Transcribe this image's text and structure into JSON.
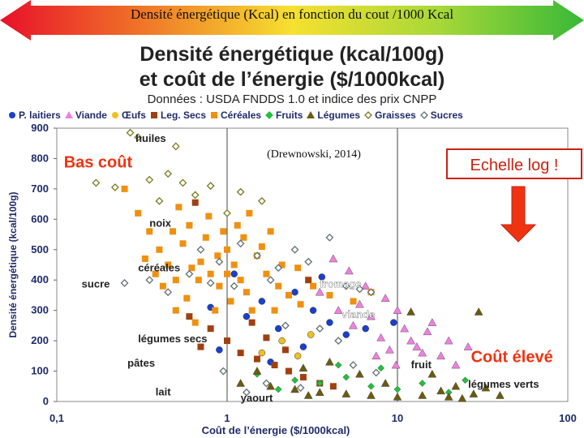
{
  "banner_title": "Densité énergétique (Kcal) en fonction du cout /1000 Kcal",
  "chart_data": {
    "type": "scatter",
    "title_line1": "Densité énergétique (kcal/100g)",
    "title_line2": "et coût de l’énergie ($/1000kcal)",
    "subtitle": "Données : USDA FNDDS 1.0 et indice des prix CNPP",
    "xlabel": "Coût de l’énergie ($/1000kcal)",
    "ylabel": "Densité énergétique (kcal/100g)",
    "x_scale": "log",
    "xlim": [
      0.1,
      100
    ],
    "ylim": [
      0,
      900
    ],
    "x_ticks": [
      {
        "v": 0.1,
        "label": "0,1"
      },
      {
        "v": 1,
        "label": "1"
      },
      {
        "v": 10,
        "label": "10"
      },
      {
        "v": 100,
        "label": "100"
      }
    ],
    "y_ticks": [
      0,
      100,
      200,
      300,
      400,
      500,
      600,
      700,
      800,
      900
    ],
    "series": [
      {
        "name": "P. laitiers",
        "color": "#1a3fd0",
        "marker": "circle",
        "points": [
          [
            0.8,
            310
          ],
          [
            1.3,
            280
          ],
          [
            1.6,
            330
          ],
          [
            2.0,
            240
          ],
          [
            2.5,
            360
          ],
          [
            3.2,
            300
          ],
          [
            4.0,
            260
          ],
          [
            5.0,
            220
          ],
          [
            0.9,
            170
          ],
          [
            1.8,
            130
          ],
          [
            6.5,
            240
          ],
          [
            2.8,
            180
          ],
          [
            9.5,
            260
          ],
          [
            1.1,
            420
          ],
          [
            3.6,
            410
          ]
        ]
      },
      {
        "name": "Viande",
        "color": "#f080e0",
        "marker": "triangle",
        "points": [
          [
            3.5,
            360
          ],
          [
            4.5,
            300
          ],
          [
            5.5,
            250
          ],
          [
            6.0,
            320
          ],
          [
            7.0,
            280
          ],
          [
            8.0,
            210
          ],
          [
            9.0,
            170
          ],
          [
            11,
            240
          ],
          [
            13,
            180
          ],
          [
            15,
            230
          ],
          [
            18,
            150
          ],
          [
            22,
            120
          ],
          [
            6.5,
            380
          ],
          [
            8.5,
            340
          ],
          [
            10,
            300
          ],
          [
            12,
            200
          ],
          [
            16,
            260
          ],
          [
            4.2,
            470
          ],
          [
            5.2,
            430
          ],
          [
            7.5,
            150
          ],
          [
            9.8,
            120
          ],
          [
            14,
            160
          ],
          [
            20,
            200
          ],
          [
            26,
            180
          ]
        ]
      },
      {
        "name": "Œufs",
        "color": "#f0c020",
        "marker": "circle",
        "points": [
          [
            1.6,
            160
          ],
          [
            2.1,
            200
          ],
          [
            2.6,
            150
          ],
          [
            3.1,
            220
          ]
        ]
      },
      {
        "name": "Leg. Secs",
        "color": "#a04010",
        "marker": "square",
        "points": [
          [
            0.6,
            280
          ],
          [
            0.8,
            240
          ],
          [
            1.0,
            200
          ],
          [
            1.2,
            160
          ],
          [
            1.5,
            140
          ],
          [
            1.9,
            120
          ],
          [
            2.3,
            100
          ],
          [
            0.7,
            180
          ],
          [
            1.4,
            260
          ],
          [
            2.8,
            80
          ],
          [
            3.5,
            60
          ],
          [
            4.2,
            50
          ],
          [
            1.7,
            210
          ],
          [
            2.2,
            170
          ],
          [
            0.65,
            655
          ],
          [
            3.0,
            400
          ]
        ]
      },
      {
        "name": "Céréales",
        "color": "#f09010",
        "marker": "square",
        "points": [
          [
            0.25,
            700
          ],
          [
            0.3,
            620
          ],
          [
            0.35,
            560
          ],
          [
            0.4,
            500
          ],
          [
            0.45,
            450
          ],
          [
            0.5,
            400
          ],
          [
            0.55,
            520
          ],
          [
            0.6,
            580
          ],
          [
            0.7,
            460
          ],
          [
            0.8,
            420
          ],
          [
            0.9,
            380
          ],
          [
            1.0,
            500
          ],
          [
            1.1,
            450
          ],
          [
            1.2,
            400
          ],
          [
            1.3,
            360
          ],
          [
            1.5,
            480
          ],
          [
            1.7,
            420
          ],
          [
            2.0,
            380
          ],
          [
            2.3,
            350
          ],
          [
            2.7,
            320
          ],
          [
            0.42,
            380
          ],
          [
            0.58,
            340
          ],
          [
            0.75,
            540
          ],
          [
            0.95,
            560
          ],
          [
            1.25,
            540
          ],
          [
            1.6,
            510
          ],
          [
            2.1,
            450
          ],
          [
            2.6,
            440
          ],
          [
            3.2,
            380
          ],
          [
            0.5,
            300
          ],
          [
            0.65,
            260
          ],
          [
            0.85,
            300
          ],
          [
            1.05,
            330
          ],
          [
            1.4,
            300
          ],
          [
            1.9,
            300
          ],
          [
            0.33,
            470
          ],
          [
            0.48,
            560
          ],
          [
            0.68,
            400
          ],
          [
            0.88,
            480
          ],
          [
            1.15,
            580
          ],
          [
            0.52,
            640
          ],
          [
            0.78,
            610
          ],
          [
            1.35,
            620
          ],
          [
            1.8,
            560
          ],
          [
            4.0,
            350
          ],
          [
            5.5,
            330
          ],
          [
            7.0,
            360
          ],
          [
            0.38,
            420
          ],
          [
            0.62,
            440
          ],
          [
            1.0,
            420
          ]
        ]
      },
      {
        "name": "Fruits",
        "color": "#20c040",
        "marker": "diamond",
        "points": [
          [
            1.5,
            90
          ],
          [
            2.5,
            70
          ],
          [
            3.5,
            60
          ],
          [
            5.0,
            80
          ],
          [
            7.0,
            50
          ],
          [
            10,
            40
          ],
          [
            14,
            60
          ],
          [
            20,
            30
          ],
          [
            2.0,
            40
          ],
          [
            4.5,
            120
          ],
          [
            8.0,
            110
          ],
          [
            25,
            70
          ]
        ]
      },
      {
        "name": "Légumes",
        "color": "#6b5a10",
        "marker": "triangle",
        "points": [
          [
            1.2,
            60
          ],
          [
            1.8,
            50
          ],
          [
            2.5,
            40
          ],
          [
            3.5,
            30
          ],
          [
            5.0,
            25
          ],
          [
            7.0,
            20
          ],
          [
            10,
            15
          ],
          [
            14,
            20
          ],
          [
            20,
            15
          ],
          [
            28,
            25
          ],
          [
            12,
            295
          ],
          [
            30,
            295
          ],
          [
            16,
            90
          ],
          [
            22,
            50
          ],
          [
            8.5,
            60
          ],
          [
            6.0,
            90
          ],
          [
            4.0,
            130
          ],
          [
            2.8,
            110
          ],
          [
            1.5,
            100
          ],
          [
            3.0,
            20
          ],
          [
            40,
            20
          ],
          [
            33,
            45
          ],
          [
            18,
            35
          ],
          [
            24,
            10
          ]
        ]
      },
      {
        "name": "Graisses",
        "color": "#7a7a20",
        "marker": "diamond",
        "points": [
          [
            0.17,
            720
          ],
          [
            0.22,
            705
          ],
          [
            0.27,
            885
          ],
          [
            0.35,
            730
          ],
          [
            0.45,
            750
          ],
          [
            0.55,
            720
          ],
          [
            0.65,
            680
          ],
          [
            0.3,
            870
          ],
          [
            0.8,
            710
          ],
          [
            1.2,
            690
          ],
          [
            1.6,
            660
          ],
          [
            1.0,
            620
          ],
          [
            0.5,
            840
          ],
          [
            0.4,
            660
          ]
        ]
      },
      {
        "name": "Sucres",
        "color": "#607070",
        "marker": "diamond",
        "points": [
          [
            0.25,
            390
          ],
          [
            0.35,
            400
          ],
          [
            0.45,
            360
          ],
          [
            0.6,
            420
          ],
          [
            0.7,
            500
          ],
          [
            0.9,
            460
          ],
          [
            1.2,
            520
          ],
          [
            1.5,
            480
          ],
          [
            2.0,
            440
          ],
          [
            2.5,
            500
          ],
          [
            3.0,
            460
          ],
          [
            4.0,
            540
          ],
          [
            5.0,
            380
          ],
          [
            6.0,
            370
          ],
          [
            7.0,
            360
          ],
          [
            1.1,
            380
          ],
          [
            1.8,
            400
          ],
          [
            0.8,
            390
          ],
          [
            2.2,
            250
          ],
          [
            3.5,
            240
          ],
          [
            4.5,
            200
          ],
          [
            1.7,
            60
          ],
          [
            2.7,
            45
          ],
          [
            0.95,
            100
          ],
          [
            1.3,
            30
          ],
          [
            5.5,
            120
          ],
          [
            7.5,
            95
          ]
        ]
      }
    ],
    "annotations": [
      {
        "text": "huiles",
        "x": 0.29,
        "y": 855,
        "color": "#222222",
        "size": 13
      },
      {
        "text": "noix",
        "x": 0.35,
        "y": 575,
        "color": "#222222",
        "size": 13
      },
      {
        "text": "céréales",
        "x": 0.3,
        "y": 428,
        "color": "#222222",
        "size": 13
      },
      {
        "text": "sucre",
        "x": 0.14,
        "y": 375,
        "color": "#222222",
        "size": 13
      },
      {
        "text": "légumes secs",
        "x": 0.3,
        "y": 195,
        "color": "#222222",
        "size": 13
      },
      {
        "text": "pâtes",
        "x": 0.26,
        "y": 115,
        "color": "#222222",
        "size": 13
      },
      {
        "text": "lait",
        "x": 0.38,
        "y": 20,
        "color": "#222222",
        "size": 13
      },
      {
        "text": "yaourt",
        "x": 1.2,
        "y": 0,
        "color": "#222222",
        "size": 13
      },
      {
        "text": "fromage",
        "x": 3.5,
        "y": 375,
        "color": "#ffffff",
        "size": 13
      },
      {
        "text": "viande",
        "x": 4.7,
        "y": 275,
        "color": "#ffffff",
        "size": 13
      },
      {
        "text": "fruit",
        "x": 12,
        "y": 110,
        "color": "#222222",
        "size": 13
      },
      {
        "text": "légumes verts",
        "x": 26,
        "y": 45,
        "color": "#222222",
        "size": 13
      },
      {
        "text": "Bas coût",
        "x": 0.11,
        "y": 770,
        "color": "#ee3311",
        "size": 20
      },
      {
        "text": "Coût élevé",
        "x": 27,
        "y": 130,
        "color": "#ee3311",
        "size": 20
      }
    ],
    "citation": "(Drewnowski, 2014)",
    "log_box_label": "Echelle log !"
  }
}
